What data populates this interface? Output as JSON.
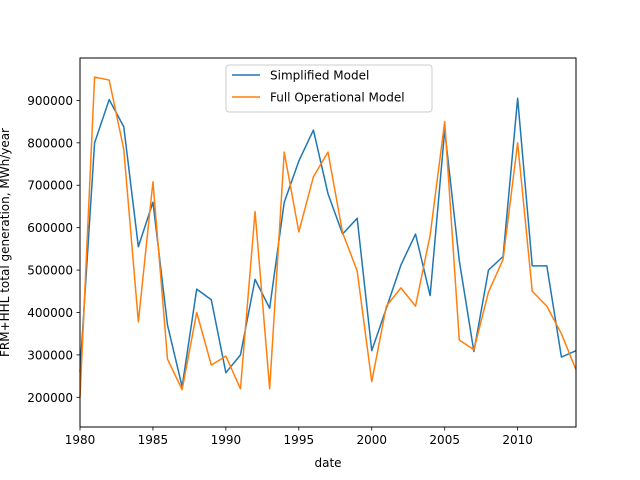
{
  "chart_data": {
    "type": "line",
    "xlabel": "date",
    "ylabel": "FRM+HHL total generation, MWh/year",
    "xlim": [
      1980,
      2014
    ],
    "ylim": [
      130000,
      1000000
    ],
    "xticks": [
      1980,
      1985,
      1990,
      1995,
      2000,
      2005,
      2010
    ],
    "yticks": [
      200000,
      300000,
      400000,
      500000,
      600000,
      700000,
      800000,
      900000
    ],
    "legend_position": "upper center",
    "x": [
      1980,
      1981,
      1982,
      1983,
      1984,
      1985,
      1986,
      1987,
      1988,
      1989,
      1990,
      1991,
      1992,
      1993,
      1994,
      1995,
      1996,
      1997,
      1998,
      1999,
      2000,
      2001,
      2002,
      2003,
      2004,
      2005,
      2006,
      2007,
      2008,
      2009,
      2010,
      2011,
      2012,
      2013,
      2014
    ],
    "series": [
      {
        "name": "Simplified Model",
        "color": "#1f77b4",
        "values": [
          260000,
          800000,
          902000,
          838000,
          555000,
          660000,
          370000,
          225000,
          455000,
          430000,
          258000,
          300000,
          478000,
          410000,
          660000,
          757000,
          830000,
          680000,
          585000,
          622000,
          310000,
          410000,
          512000,
          585000,
          440000,
          830000,
          522000,
          308000,
          500000,
          532000,
          905000,
          510000,
          510000,
          295000,
          310000
        ]
      },
      {
        "name": "Full Operational Model",
        "color": "#ff7f0e",
        "values": [
          200000,
          955000,
          948000,
          785000,
          378000,
          708000,
          290000,
          218000,
          400000,
          276000,
          297000,
          220000,
          638000,
          220000,
          778000,
          590000,
          720000,
          778000,
          588000,
          498000,
          237000,
          415000,
          458000,
          415000,
          582000,
          850000,
          335000,
          312000,
          448000,
          525000,
          800000,
          450000,
          415000,
          350000,
          265000
        ]
      }
    ]
  }
}
